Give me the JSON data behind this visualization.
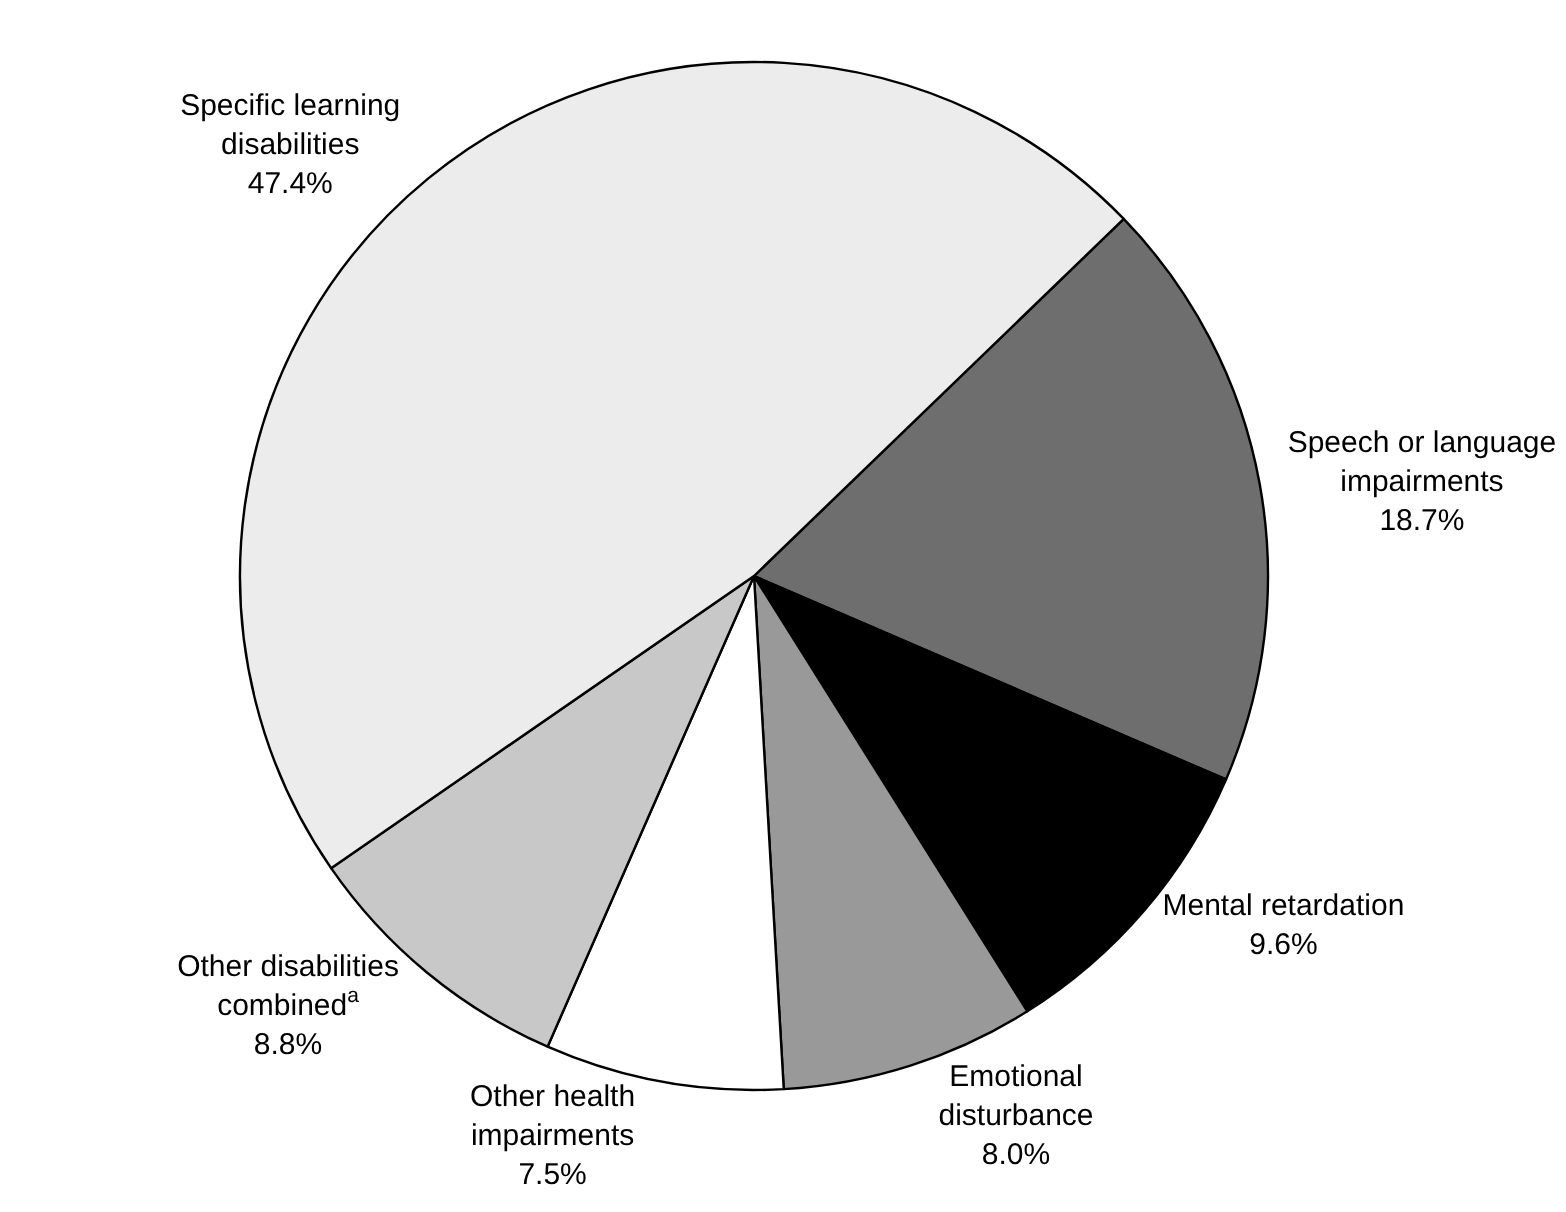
{
  "chart_data": {
    "type": "pie",
    "categories": [
      "Speech or language impairments",
      "Mental retardation",
      "Emotional disturbance",
      "Other health impairments",
      "Other disabilities combined$^{a}$",
      "Specific learning disabilities"
    ],
    "values": [
      18.7,
      9.6,
      8.0,
      7.5,
      8.8,
      47.4
    ],
    "value_labels": [
      "18.7%",
      "9.6%",
      "8.0%",
      "7.5%",
      "8.8%",
      "47.4%"
    ],
    "colors": [
      "#6e6e6e",
      "#000000",
      "#999999",
      "#ffffff",
      "#c8c8c8",
      "#ececec"
    ],
    "legend": false
  }
}
